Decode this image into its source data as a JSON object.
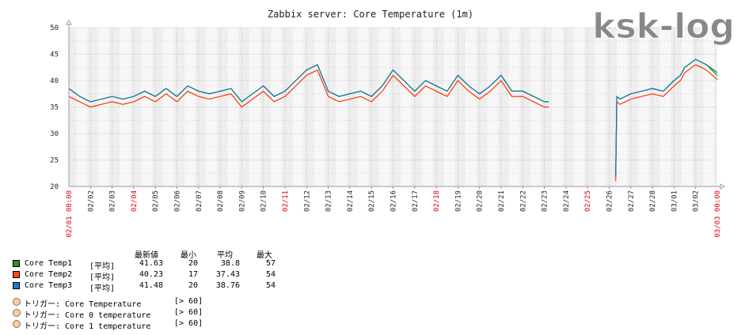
{
  "watermark": "ksk-log",
  "chart_data": {
    "type": "line",
    "title": "Zabbix server: Core Temperature (1m)",
    "ylim": [
      20,
      50
    ],
    "y_ticks": [
      "20",
      "25",
      "30",
      "35",
      "40",
      "45",
      "50"
    ],
    "x_start_label": "02/01 00:00",
    "x_end_label": "03/03 00:00",
    "x_tick_labels": [
      "02/02",
      "02/03",
      "02/04",
      "02/05",
      "02/06",
      "02/07",
      "02/08",
      "02/09",
      "02/10",
      "02/11",
      "02/12",
      "02/13",
      "02/14",
      "02/15",
      "02/16",
      "02/17",
      "02/18",
      "02/19",
      "02/20",
      "02/21",
      "02/22",
      "02/23",
      "02/24",
      "02/25",
      "02/26",
      "02/27",
      "02/28",
      "03/01",
      "03/02"
    ],
    "red_tick_labels": [
      "02/04",
      "02/11",
      "02/18",
      "02/25"
    ],
    "x_range_days": [
      0,
      30
    ],
    "grid": true,
    "series": [
      {
        "name": "Core Temp1",
        "color": "#00aa00",
        "x": [
          0,
          0.5,
          1,
          1.5,
          2,
          2.5,
          3,
          3.5,
          4,
          4.5,
          5,
          5.5,
          6,
          6.5,
          7,
          7.5,
          8,
          8.5,
          9,
          9.5,
          10,
          10.5,
          11,
          11.5,
          12,
          12.5,
          13,
          13.5,
          14,
          14.5,
          15,
          15.5,
          16,
          16.5,
          17,
          17.5,
          18,
          18.5,
          19,
          19.5,
          20,
          20.5,
          21,
          21.5,
          22,
          22.2,
          25.3,
          25.35,
          25.5,
          26,
          26.5,
          27,
          27.5,
          28,
          28.3,
          28.5,
          29,
          29.5,
          30
        ],
        "y": [
          38.5,
          37,
          36,
          36.5,
          37,
          36.5,
          37,
          38,
          37,
          38.5,
          37,
          39,
          38,
          37.5,
          38,
          38.5,
          36,
          37.5,
          39,
          37,
          38,
          40,
          42,
          43,
          38,
          37,
          37.5,
          38,
          37,
          39,
          42,
          40,
          38,
          40,
          39,
          38,
          41,
          39,
          37.5,
          39,
          41,
          38,
          38,
          37,
          36,
          36,
          22,
          37,
          36.5,
          37.5,
          38,
          38.5,
          38,
          40,
          41,
          42.5,
          44,
          43,
          41
        ]
      },
      {
        "name": "Core Temp2",
        "color": "#ff3300",
        "x": [
          0,
          0.5,
          1,
          1.5,
          2,
          2.5,
          3,
          3.5,
          4,
          4.5,
          5,
          5.5,
          6,
          6.5,
          7,
          7.5,
          8,
          8.5,
          9,
          9.5,
          10,
          10.5,
          11,
          11.5,
          12,
          12.5,
          13,
          13.5,
          14,
          14.5,
          15,
          15.5,
          16,
          16.5,
          17,
          17.5,
          18,
          18.5,
          19,
          19.5,
          20,
          20.5,
          21,
          21.5,
          22,
          22.2,
          25.3,
          25.35,
          25.5,
          26,
          26.5,
          27,
          27.5,
          28,
          28.3,
          28.5,
          29,
          29.5,
          30
        ],
        "y": [
          37,
          36,
          35,
          35.5,
          36,
          35.5,
          36,
          37,
          36,
          37.5,
          36,
          38,
          37,
          36.5,
          37,
          37.5,
          35,
          36.5,
          38,
          36,
          37,
          39,
          41,
          42,
          37,
          36,
          36.5,
          37,
          36,
          38,
          41,
          39,
          37,
          39,
          38,
          37,
          40,
          38,
          36.5,
          38,
          40,
          37,
          37,
          36,
          35,
          35,
          21,
          36,
          35.5,
          36.5,
          37,
          37.5,
          37,
          39,
          40,
          41.5,
          43,
          42,
          40.2
        ]
      },
      {
        "name": "Core Temp3",
        "color": "#1a6fa8",
        "x": [
          0,
          0.5,
          1,
          1.5,
          2,
          2.5,
          3,
          3.5,
          4,
          4.5,
          5,
          5.5,
          6,
          6.5,
          7,
          7.5,
          8,
          8.5,
          9,
          9.5,
          10,
          10.5,
          11,
          11.5,
          12,
          12.5,
          13,
          13.5,
          14,
          14.5,
          15,
          15.5,
          16,
          16.5,
          17,
          17.5,
          18,
          18.5,
          19,
          19.5,
          20,
          20.5,
          21,
          21.5,
          22,
          22.2,
          25.3,
          25.35,
          25.5,
          26,
          26.5,
          27,
          27.5,
          28,
          28.3,
          28.5,
          29,
          29.5,
          30
        ],
        "y": [
          38.5,
          37,
          36,
          36.5,
          37,
          36.5,
          37,
          38,
          37,
          38.5,
          37,
          39,
          38,
          37.5,
          38,
          38.5,
          36,
          37.5,
          39,
          37,
          38,
          40,
          42,
          43,
          38,
          37,
          37.5,
          38,
          37,
          39,
          42,
          40,
          38,
          40,
          39,
          38,
          41,
          39,
          37.5,
          39,
          41,
          38,
          38,
          37,
          36,
          36,
          22,
          37,
          36.5,
          37.5,
          38,
          38.5,
          38,
          40,
          41,
          42.5,
          44,
          43,
          41.5
        ]
      }
    ]
  },
  "legend": {
    "headers": {
      "last": "最新値",
      "min": "最小",
      "avg": "平均",
      "max": "最大"
    },
    "rows": [
      {
        "name": "Core Temp1",
        "func": "[平均]",
        "last": "41.63",
        "min": "20",
        "avg": "38.8",
        "max": "57",
        "color": "#00aa00"
      },
      {
        "name": "Core Temp2",
        "func": "[平均]",
        "last": "40.23",
        "min": "17",
        "avg": "37.43",
        "max": "54",
        "color": "#ff3300"
      },
      {
        "name": "Core Temp3",
        "func": "[平均]",
        "last": "41.48",
        "min": "20",
        "avg": "38.76",
        "max": "54",
        "color": "#1a6fa8"
      }
    ],
    "triggers": [
      {
        "name": "トリガー: Core Temperature",
        "cond": "[> 60]"
      },
      {
        "name": "トリガー: Core 0 temperature",
        "cond": "[> 60]"
      },
      {
        "name": "トリガー: Core 1 temperature",
        "cond": "[> 60]"
      }
    ]
  }
}
